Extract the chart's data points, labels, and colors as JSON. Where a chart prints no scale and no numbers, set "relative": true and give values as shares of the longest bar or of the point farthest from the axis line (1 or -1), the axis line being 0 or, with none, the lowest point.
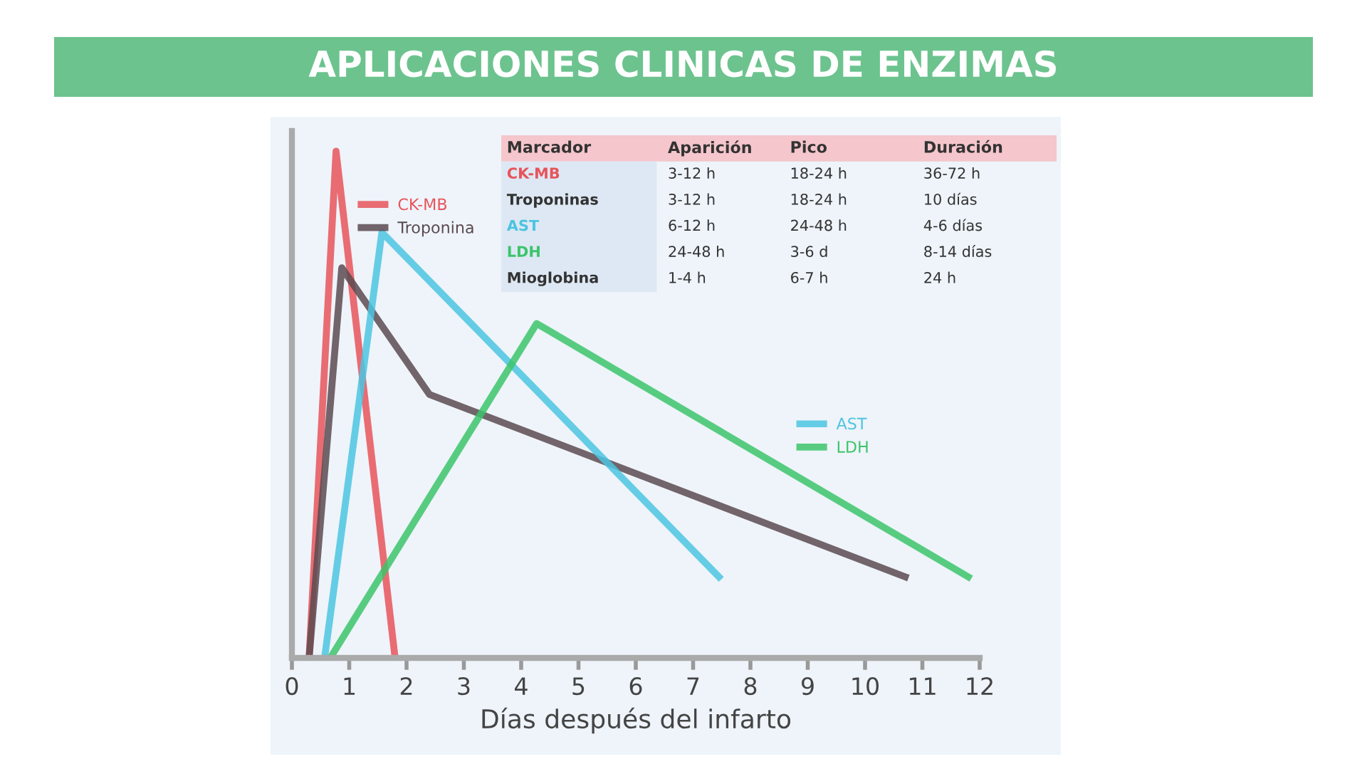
{
  "chart_data": [
    {
      "type": "line",
      "title": "APLICACIONES CLINICAS DE ENZIMAS",
      "xlabel": "Días después del infarto",
      "relative": true,
      "xlim": [
        0,
        12
      ],
      "xticks": [
        0,
        1,
        2,
        3,
        4,
        5,
        6,
        7,
        8,
        9,
        10,
        11,
        12
      ],
      "grid": false,
      "legend": [
        "top left",
        "center right"
      ],
      "marker": "none",
      "line_style": "solid",
      "series": [
        {
          "name": "CK-MB",
          "color": "#e8545a",
          "x": [
            0.3,
            0.77,
            1.8
          ],
          "values": [
            0,
            1,
            0
          ]
        },
        {
          "name": "Troponina",
          "color": "#5a4a50",
          "x": [
            0.3,
            0.87,
            2.4,
            10.7
          ],
          "values": [
            0,
            0.77,
            0.52,
            0.16
          ]
        },
        {
          "name": "AST",
          "color": "#4cc4e0",
          "x": [
            0.57,
            1.57,
            7.45
          ],
          "values": [
            0,
            0.84,
            0.16
          ]
        },
        {
          "name": "LDH",
          "color": "#3cc46a",
          "x": [
            0.67,
            4.27,
            11.8
          ],
          "values": [
            0,
            0.66,
            0.16
          ]
        }
      ]
    },
    {
      "type": "other",
      "categories": [
        "Marcador",
        "Aparición",
        "Pico",
        "Duración"
      ],
      "colors": [
        "#e8545a",
        "#333333",
        "#4cc4e0",
        "#3cc46a",
        "#333333"
      ],
      "cell_labels": [
        [
          "CK-MB",
          "3-12 h",
          "18-24 h",
          "36-72 h"
        ],
        [
          "Troponinas",
          "3-12 h",
          "18-24 h",
          "10 días"
        ],
        [
          "AST",
          "6-12 h",
          "24-48 h",
          "4-6 días"
        ],
        [
          "LDH",
          "24-48 h",
          "3-6 d",
          "8-14 días"
        ],
        [
          "Mioglobina",
          "1-4 h",
          "6-7 h",
          "24 h"
        ]
      ]
    }
  ]
}
